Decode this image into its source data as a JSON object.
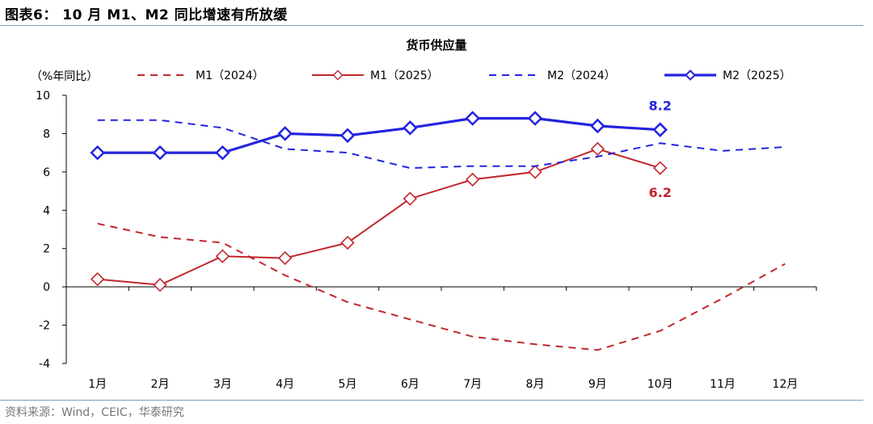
{
  "figure_title": "图表6：  10 月 M1、M2 同比增速有所放缓",
  "source": "资料来源：Wind，CEIC，华泰研究",
  "chart_data": {
    "type": "line",
    "title": "货币供应量",
    "unit_label": "（%年同比）",
    "categories": [
      "1月",
      "2月",
      "3月",
      "4月",
      "5月",
      "6月",
      "7月",
      "8月",
      "9月",
      "10月",
      "11月",
      "12月"
    ],
    "ylim": [
      -4,
      10
    ],
    "yticks": [
      -4,
      -2,
      0,
      2,
      4,
      6,
      8,
      10
    ],
    "grid": false,
    "legend": "top",
    "series": [
      {
        "name": "M1（2024）",
        "color": "#c0272d",
        "dash": true,
        "marker": false,
        "values": [
          3.3,
          2.6,
          2.3,
          0.6,
          -0.8,
          -1.7,
          -2.6,
          -3.0,
          -3.3,
          -2.3,
          -0.6,
          1.2
        ]
      },
      {
        "name": "M1（2025）",
        "color": "#c0272d",
        "dash": false,
        "marker": true,
        "values": [
          0.4,
          0.1,
          1.6,
          1.5,
          2.3,
          4.6,
          5.6,
          6.0,
          7.2,
          6.2,
          null,
          null
        ]
      },
      {
        "name": "M2（2024）",
        "color": "#2424e0",
        "dash": true,
        "marker": false,
        "values": [
          8.7,
          8.7,
          8.3,
          7.2,
          7.0,
          6.2,
          6.3,
          6.3,
          6.8,
          7.5,
          7.1,
          7.3
        ]
      },
      {
        "name": "M2（2025）",
        "color": "#2424e0",
        "dash": false,
        "marker": true,
        "values": [
          7.0,
          7.0,
          7.0,
          8.0,
          7.9,
          8.3,
          8.8,
          8.8,
          8.4,
          8.2,
          null,
          null
        ]
      }
    ],
    "annotations": [
      {
        "text": "8.2",
        "series": "M2（2025）",
        "category": "10月",
        "color": "#2424e0"
      },
      {
        "text": "6.2",
        "series": "M1（2025）",
        "category": "10月",
        "color": "#c0272d"
      }
    ]
  }
}
